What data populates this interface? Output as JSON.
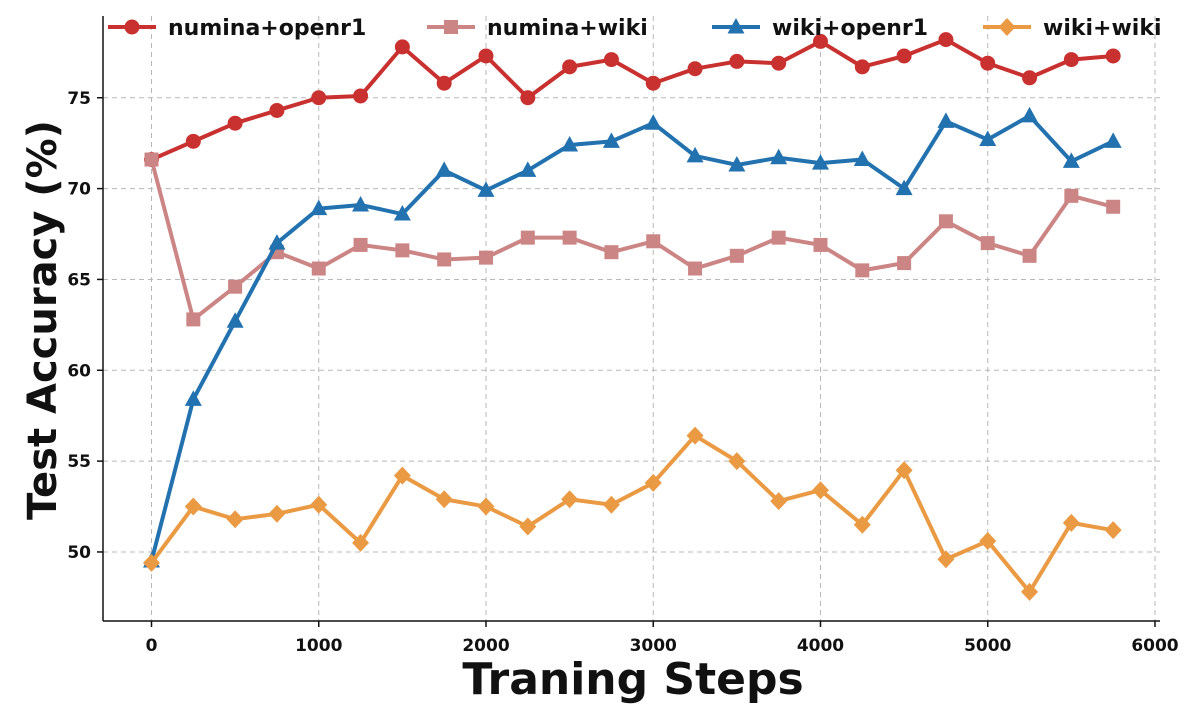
{
  "chart_data": {
    "type": "line",
    "title": "",
    "xlabel": "Traning Steps",
    "ylabel": "Test Accuracy (%)",
    "xlim": [
      -290,
      6030
    ],
    "ylim": [
      46.2,
      79.5
    ],
    "xticks": [
      0,
      1000,
      2000,
      3000,
      4000,
      5000,
      6000
    ],
    "yticks": [
      50,
      55,
      60,
      65,
      70,
      75
    ],
    "grid": true,
    "legend_position": "top",
    "x": [
      0,
      250,
      500,
      750,
      1000,
      1250,
      1500,
      1750,
      2000,
      2250,
      2500,
      2750,
      3000,
      3250,
      3500,
      3750,
      4000,
      4250,
      4500,
      4750,
      5000,
      5250,
      5500,
      5750
    ],
    "series": [
      {
        "name": "numina+openr1",
        "color": "#c8312f",
        "marker": "circle",
        "values": [
          71.6,
          72.6,
          73.6,
          74.3,
          75.0,
          75.1,
          77.8,
          75.8,
          77.3,
          75.0,
          76.7,
          77.1,
          75.8,
          76.6,
          77.0,
          76.9,
          78.1,
          76.7,
          77.3,
          78.2,
          76.9,
          76.1,
          77.1,
          77.3
        ]
      },
      {
        "name": "numina+wiki",
        "color": "#cc8585",
        "marker": "square",
        "values": [
          71.6,
          62.8,
          64.6,
          66.5,
          65.6,
          66.9,
          66.6,
          66.1,
          66.2,
          67.3,
          67.3,
          66.5,
          67.1,
          65.6,
          66.3,
          67.3,
          66.9,
          65.5,
          65.9,
          68.2,
          67.0,
          66.3,
          69.6,
          69.0
        ]
      },
      {
        "name": "wiki+openr1",
        "color": "#2372b0",
        "marker": "triangle",
        "values": [
          49.5,
          58.4,
          62.7,
          67.0,
          68.9,
          69.1,
          68.6,
          71.0,
          69.9,
          71.0,
          72.4,
          72.6,
          73.6,
          71.8,
          71.3,
          71.7,
          71.4,
          71.6,
          70.0,
          73.7,
          72.7,
          74.0,
          71.5,
          72.6
        ]
      },
      {
        "name": "wiki+wiki",
        "color": "#eb9a44",
        "marker": "diamond",
        "values": [
          49.4,
          52.5,
          51.8,
          52.1,
          52.6,
          50.5,
          54.2,
          52.9,
          52.5,
          51.4,
          52.9,
          52.6,
          53.8,
          56.4,
          55.0,
          52.8,
          53.4,
          51.5,
          54.5,
          49.6,
          50.6,
          47.8,
          51.6,
          51.2
        ]
      }
    ]
  }
}
